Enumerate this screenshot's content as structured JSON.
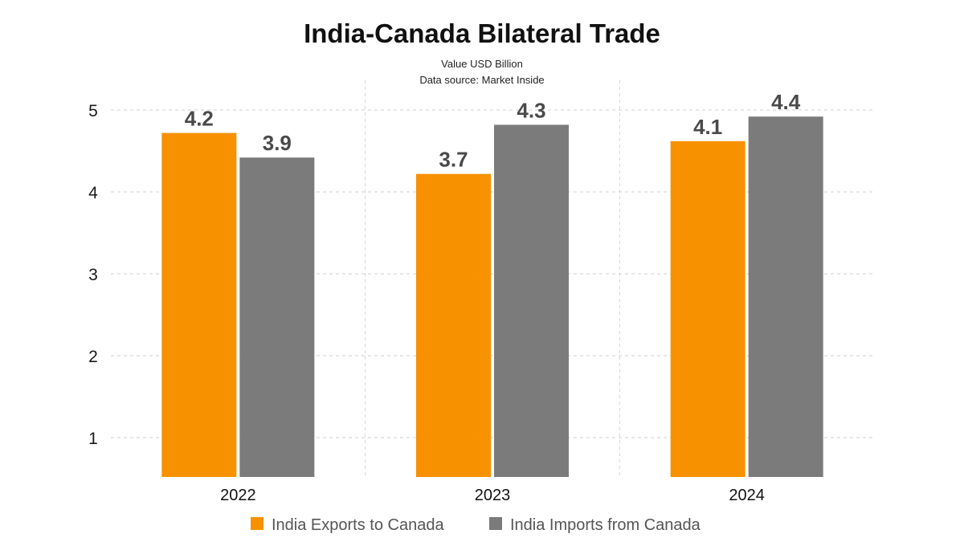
{
  "chart_data": {
    "type": "bar",
    "title": "India-Canada Bilateral Trade",
    "subtitle": [
      "Value USD Billion",
      "Data source: Market Inside"
    ],
    "xlabel": "",
    "ylabel": "",
    "categories": [
      "2022",
      "2023",
      "2024"
    ],
    "series": [
      {
        "name": "India Exports to Canada",
        "color": "#f79100",
        "values": [
          4.2,
          3.7,
          4.1
        ]
      },
      {
        "name": "India Imports from Canada",
        "color": "#7b7b7b",
        "values": [
          3.9,
          4.3,
          4.4
        ]
      }
    ],
    "yticks": [
      "1",
      "2",
      "3",
      "4",
      "5"
    ],
    "grid": true,
    "legend_position": "bottom"
  }
}
